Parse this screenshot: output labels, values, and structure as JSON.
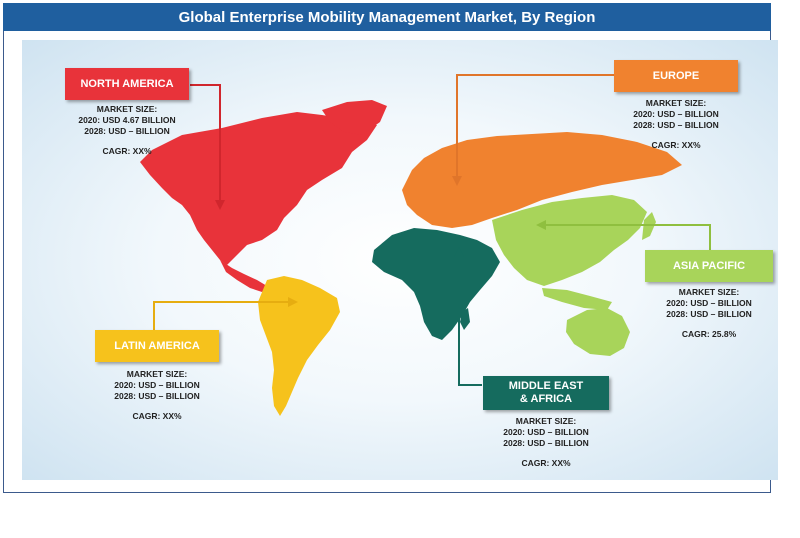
{
  "title": "Global Enterprise Mobility Management Market, By Region",
  "colors": {
    "north_america": "#e8333a",
    "europe": "#f0822f",
    "asia_pacific": "#a8d45a",
    "latin_america": "#f6c21c",
    "middle_east_africa": "#156b5e",
    "title_bar": "#1f5f9f"
  },
  "regions": {
    "north_america": {
      "label": "NORTH AMERICA",
      "market_size_label": "MARKET SIZE:",
      "y2020": "2020: USD 4.67 BILLION",
      "y2028": "2028: USD – BILLION",
      "cagr": "CAGR: XX%"
    },
    "europe": {
      "label": "EUROPE",
      "market_size_label": "MARKET SIZE:",
      "y2020": "2020: USD – BILLION",
      "y2028": "2028: USD – BILLION",
      "cagr": "CAGR: XX%"
    },
    "asia_pacific": {
      "label": "ASIA PACIFIC",
      "market_size_label": "MARKET SIZE:",
      "y2020": "2020: USD – BILLION",
      "y2028": "2028: USD – BILLION",
      "cagr": "CAGR: 25.8%"
    },
    "latin_america": {
      "label": "LATIN AMERICA",
      "market_size_label": "MARKET SIZE:",
      "y2020": "2020: USD – BILLION",
      "y2028": "2028: USD – BILLION",
      "cagr": "CAGR: XX%"
    },
    "middle_east_africa": {
      "label_line1": "MIDDLE EAST",
      "label_line2": "& AFRICA",
      "market_size_label": "MARKET SIZE:",
      "y2020": "2020: USD – BILLION",
      "y2028": "2028: USD – BILLION",
      "cagr": "CAGR: XX%"
    }
  }
}
